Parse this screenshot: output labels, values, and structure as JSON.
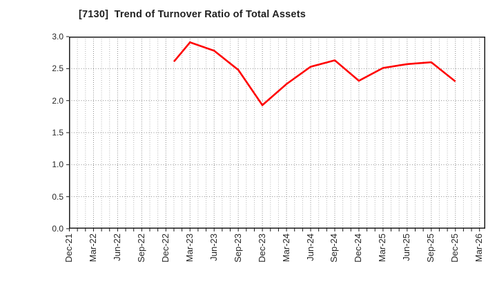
{
  "chart_data": {
    "type": "line",
    "title": "[7130]  Trend of Turnover Ratio of Total Assets",
    "xlabel": "",
    "ylabel": "",
    "ylim": [
      0.0,
      3.0
    ],
    "y_ticks": [
      "0.0",
      "0.5",
      "1.0",
      "1.5",
      "2.0",
      "2.5",
      "3.0"
    ],
    "x_tick_labels": [
      "Dec-21",
      "Mar-22",
      "Jun-22",
      "Sep-22",
      "Dec-22",
      "Mar-23",
      "Jun-23",
      "Sep-23",
      "Dec-23",
      "Mar-24",
      "Jun-24",
      "Sep-24",
      "Dec-24",
      "Mar-25",
      "Jun-25",
      "Sep-25",
      "Dec-25",
      "Mar-26"
    ],
    "x_axis_months_span": 51,
    "grid": {
      "style": "dotted",
      "horizontal_step": 0.5,
      "vertical": "monthly"
    },
    "legend": "none",
    "series": [
      {
        "name": "Turnover Ratio of Total Assets",
        "color": "#ff0000",
        "points": [
          {
            "x": "Jan-23",
            "month_offset": 13,
            "y": 2.61
          },
          {
            "x": "Mar-23",
            "month_offset": 15,
            "y": 2.91
          },
          {
            "x": "Jun-23",
            "month_offset": 18,
            "y": 2.78
          },
          {
            "x": "Sep-23",
            "month_offset": 21,
            "y": 2.48
          },
          {
            "x": "Dec-23",
            "month_offset": 24,
            "y": 1.93
          },
          {
            "x": "Mar-24",
            "month_offset": 27,
            "y": 2.26
          },
          {
            "x": "Jun-24",
            "month_offset": 30,
            "y": 2.53
          },
          {
            "x": "Sep-24",
            "month_offset": 33,
            "y": 2.63
          },
          {
            "x": "Dec-24",
            "month_offset": 36,
            "y": 2.31
          },
          {
            "x": "Mar-25",
            "month_offset": 39,
            "y": 2.51
          },
          {
            "x": "Jun-25",
            "month_offset": 42,
            "y": 2.57
          },
          {
            "x": "Sep-25",
            "month_offset": 45,
            "y": 2.6
          },
          {
            "x": "Dec-25",
            "month_offset": 48,
            "y": 2.3
          }
        ]
      }
    ],
    "colors": {
      "line": "#ff0000",
      "title_text": "#1f1f1f",
      "tick_text": "#262626",
      "grid_minor": "#b3b3b3",
      "grid_major": "#8a8a8a",
      "spine": "#1a1a1a",
      "background": "#ffffff"
    }
  }
}
